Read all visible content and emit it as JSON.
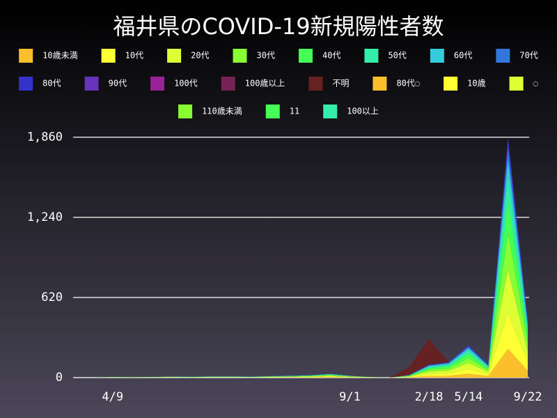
{
  "chart_data": {
    "type": "stacked-area",
    "title": "福井県のCOVID-19新規陽性者数",
    "categories": [
      null,
      null,
      "4/9",
      null,
      null,
      null,
      null,
      null,
      null,
      null,
      null,
      null,
      null,
      null,
      "9/1",
      null,
      null,
      null,
      "2/18",
      null,
      "5/14",
      null,
      null,
      "9/22"
    ],
    "ylim": [
      0,
      1860
    ],
    "yticks": [
      0,
      620,
      {
        "value": 1240,
        "label": "1,240"
      },
      {
        "value": 1860,
        "label": "1,860"
      }
    ],
    "grid": true,
    "series": [
      {
        "name": "10歳未満",
        "color": "#fbbf2b",
        "values": [
          0,
          0,
          0,
          0,
          0,
          1,
          0,
          1,
          1,
          1,
          1,
          2,
          2,
          4,
          2,
          1,
          0,
          2,
          12,
          14,
          30,
          12,
          223,
          54
        ]
      },
      {
        "name": "10代",
        "color": "#ffff33",
        "values": [
          0,
          0,
          1,
          0,
          1,
          1,
          1,
          1,
          1,
          1,
          2,
          2,
          3,
          5,
          2,
          1,
          0,
          3,
          15,
          18,
          38,
          15,
          279,
          68
        ]
      },
      {
        "name": "20代",
        "color": "#ddff33",
        "values": [
          0,
          0,
          1,
          1,
          1,
          2,
          1,
          2,
          2,
          1,
          2,
          3,
          4,
          5,
          3,
          1,
          0,
          4,
          18,
          22,
          45,
          18,
          335,
          81
        ]
      },
      {
        "name": "30代",
        "color": "#88ff33",
        "values": [
          0,
          0,
          1,
          1,
          1,
          1,
          1,
          2,
          2,
          1,
          2,
          2,
          3,
          5,
          2,
          1,
          0,
          3,
          15,
          18,
          38,
          15,
          279,
          68
        ]
      },
      {
        "name": "40代",
        "color": "#44ff55",
        "values": [
          0,
          0,
          1,
          1,
          1,
          1,
          1,
          1,
          1,
          1,
          2,
          2,
          3,
          4,
          2,
          1,
          0,
          3,
          14,
          17,
          35,
          14,
          260,
          63
        ]
      },
      {
        "name": "50代",
        "color": "#33eeaa",
        "values": [
          0,
          0,
          1,
          0,
          1,
          1,
          1,
          1,
          1,
          1,
          1,
          2,
          2,
          3,
          2,
          0,
          0,
          2,
          10,
          12,
          25,
          10,
          186,
          45
        ]
      },
      {
        "name": "60代",
        "color": "#33ccdd",
        "values": [
          0,
          0,
          0,
          0,
          0,
          1,
          1,
          1,
          1,
          1,
          1,
          1,
          1,
          2,
          1,
          0,
          0,
          1,
          7,
          8,
          17,
          7,
          130,
          31
        ]
      },
      {
        "name": "70代",
        "color": "#3377dd",
        "values": [
          0,
          0,
          0,
          0,
          0,
          0,
          0,
          1,
          1,
          1,
          1,
          1,
          1,
          1,
          1,
          0,
          0,
          1,
          5,
          6,
          12,
          5,
          93,
          22
        ]
      },
      {
        "name": "80代",
        "color": "#3333cc",
        "values": [
          0,
          0,
          0,
          0,
          0,
          0,
          0,
          0,
          0,
          0,
          0,
          0,
          1,
          1,
          0,
          0,
          0,
          1,
          3,
          4,
          8,
          3,
          56,
          14
        ]
      },
      {
        "name": "90代",
        "color": "#6633bb",
        "values": [
          0,
          0,
          0,
          0,
          0,
          0,
          0,
          0,
          0,
          0,
          0,
          0,
          0,
          0,
          0,
          0,
          0,
          0,
          1,
          1,
          2,
          1,
          19,
          4
        ]
      },
      {
        "name": "100代",
        "color": "#992299",
        "values": [
          0,
          0,
          0,
          0,
          0,
          0,
          0,
          0,
          0,
          0,
          0,
          0,
          0,
          0,
          0,
          0,
          0,
          0,
          0,
          0,
          0,
          0,
          0,
          0
        ]
      },
      {
        "name": "100歳以上",
        "color": "#772255",
        "values": [
          0,
          0,
          0,
          0,
          0,
          0,
          0,
          0,
          0,
          0,
          0,
          0,
          0,
          0,
          0,
          0,
          0,
          0,
          0,
          0,
          0,
          0,
          0,
          0
        ]
      },
      {
        "name": "不明",
        "color": "#662222",
        "values": [
          0,
          0,
          0,
          0,
          0,
          0,
          0,
          0,
          0,
          0,
          0,
          0,
          0,
          0,
          0,
          0,
          0,
          60,
          200,
          0,
          0,
          0,
          0,
          0
        ]
      },
      {
        "name": "80代◌",
        "color": "#fbbf2b",
        "values": [
          0,
          0,
          0,
          0,
          0,
          0,
          0,
          0,
          0,
          0,
          0,
          0,
          0,
          0,
          0,
          0,
          0,
          0,
          0,
          0,
          0,
          0,
          0,
          0
        ]
      },
      {
        "name": "10歳",
        "color": "#ffff33",
        "values": [
          0,
          0,
          0,
          0,
          0,
          0,
          0,
          0,
          0,
          0,
          0,
          0,
          0,
          0,
          0,
          0,
          0,
          0,
          0,
          0,
          0,
          0,
          0,
          0
        ]
      },
      {
        "name": "◌",
        "color": "#ddff33",
        "values": [
          0,
          0,
          0,
          0,
          0,
          0,
          0,
          0,
          0,
          0,
          0,
          0,
          0,
          0,
          0,
          0,
          0,
          0,
          0,
          0,
          0,
          0,
          0,
          0
        ]
      },
      {
        "name": "110歳未満",
        "color": "#88ff33",
        "values": [
          0,
          0,
          0,
          0,
          0,
          0,
          0,
          0,
          0,
          0,
          0,
          0,
          0,
          0,
          0,
          0,
          0,
          0,
          0,
          0,
          0,
          0,
          0,
          0
        ]
      },
      {
        "name": "11",
        "color": "#44ff55",
        "values": [
          0,
          0,
          0,
          0,
          0,
          0,
          0,
          0,
          0,
          0,
          0,
          0,
          0,
          0,
          0,
          0,
          0,
          0,
          0,
          0,
          0,
          0,
          0,
          0
        ]
      },
      {
        "name": "100以上",
        "color": "#33eeaa",
        "values": [
          0,
          0,
          0,
          0,
          0,
          0,
          0,
          0,
          0,
          0,
          0,
          0,
          0,
          0,
          0,
          0,
          0,
          0,
          0,
          0,
          0,
          0,
          0,
          0
        ]
      }
    ]
  }
}
